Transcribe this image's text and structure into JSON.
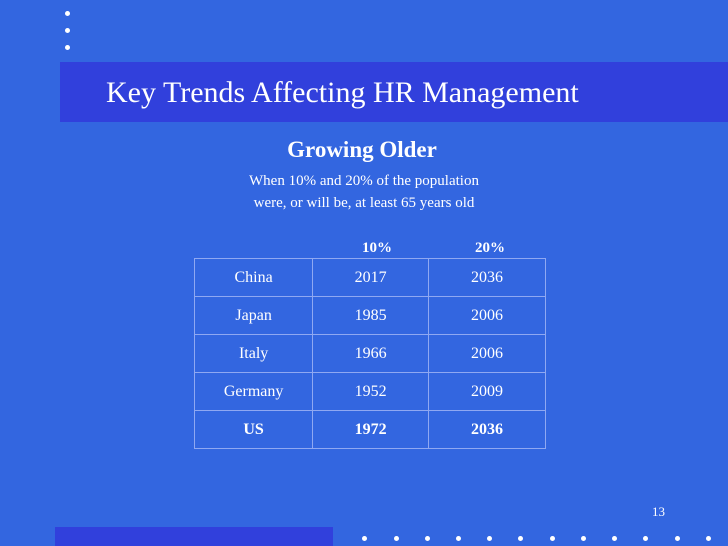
{
  "slide": {
    "title": "Key Trends Affecting HR Management",
    "subtitle": "Growing Older",
    "description_line1": "When 10% and 20% of the population",
    "description_line2": "were, or will be, at least 65 years old",
    "column_headers": [
      "10%",
      "20%"
    ],
    "rows": [
      {
        "country": "China",
        "ten": "2017",
        "twenty": "2036"
      },
      {
        "country": "Japan",
        "ten": "1985",
        "twenty": "2006"
      },
      {
        "country": "Italy",
        "ten": "1966",
        "twenty": "2006"
      },
      {
        "country": "Germany",
        "ten": "1952",
        "twenty": "2009"
      },
      {
        "country": "US",
        "ten": "1972",
        "twenty": "2036"
      }
    ],
    "page_number": "13"
  },
  "colors": {
    "background": "#3366e0",
    "band": "#3140dc",
    "text": "#ffffff",
    "table_border": "#8fa8f2"
  }
}
